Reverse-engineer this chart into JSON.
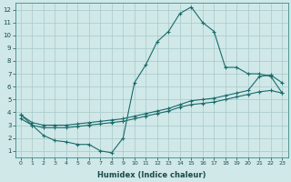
{
  "xlabel": "Humidex (Indice chaleur)",
  "ylabel": "",
  "xlim": [
    -0.5,
    23.5
  ],
  "ylim": [
    0.5,
    12.5
  ],
  "xticks": [
    0,
    1,
    2,
    3,
    4,
    5,
    6,
    7,
    8,
    9,
    10,
    11,
    12,
    13,
    14,
    15,
    16,
    17,
    18,
    19,
    20,
    21,
    22,
    23
  ],
  "yticks": [
    1,
    2,
    3,
    4,
    5,
    6,
    7,
    8,
    9,
    10,
    11,
    12
  ],
  "bg_color": "#d0e8e8",
  "line_color": "#1a6b6b",
  "grid_color": "#a8c8c8",
  "line1_x": [
    0,
    1,
    2,
    3,
    4,
    5,
    6,
    7,
    8,
    9,
    10,
    11,
    12,
    13,
    14,
    15,
    16,
    17,
    18,
    19,
    20,
    21,
    22,
    23
  ],
  "line1_y": [
    3.8,
    3.0,
    2.2,
    1.8,
    1.7,
    1.5,
    1.5,
    1.0,
    0.85,
    2.0,
    6.3,
    7.7,
    9.5,
    10.3,
    11.7,
    12.2,
    11.0,
    10.3,
    7.5,
    7.5,
    7.0,
    7.0,
    6.8,
    5.5
  ],
  "line2_x": [
    0,
    1,
    2,
    3,
    4,
    5,
    6,
    7,
    8,
    9,
    10,
    11,
    12,
    13,
    14,
    15,
    16,
    17,
    18,
    19,
    20,
    21,
    22,
    23
  ],
  "line2_y": [
    3.8,
    3.2,
    3.0,
    3.0,
    3.0,
    3.1,
    3.2,
    3.3,
    3.4,
    3.5,
    3.7,
    3.9,
    4.1,
    4.3,
    4.6,
    4.9,
    5.0,
    5.1,
    5.3,
    5.5,
    5.7,
    6.8,
    6.9,
    6.3
  ],
  "line3_x": [
    0,
    1,
    2,
    3,
    4,
    5,
    6,
    7,
    8,
    9,
    10,
    11,
    12,
    13,
    14,
    15,
    16,
    17,
    18,
    19,
    20,
    21,
    22,
    23
  ],
  "line3_y": [
    3.5,
    3.0,
    2.8,
    2.8,
    2.8,
    2.9,
    3.0,
    3.1,
    3.2,
    3.3,
    3.5,
    3.7,
    3.9,
    4.1,
    4.4,
    4.6,
    4.7,
    4.8,
    5.0,
    5.2,
    5.4,
    5.6,
    5.7,
    5.5
  ]
}
